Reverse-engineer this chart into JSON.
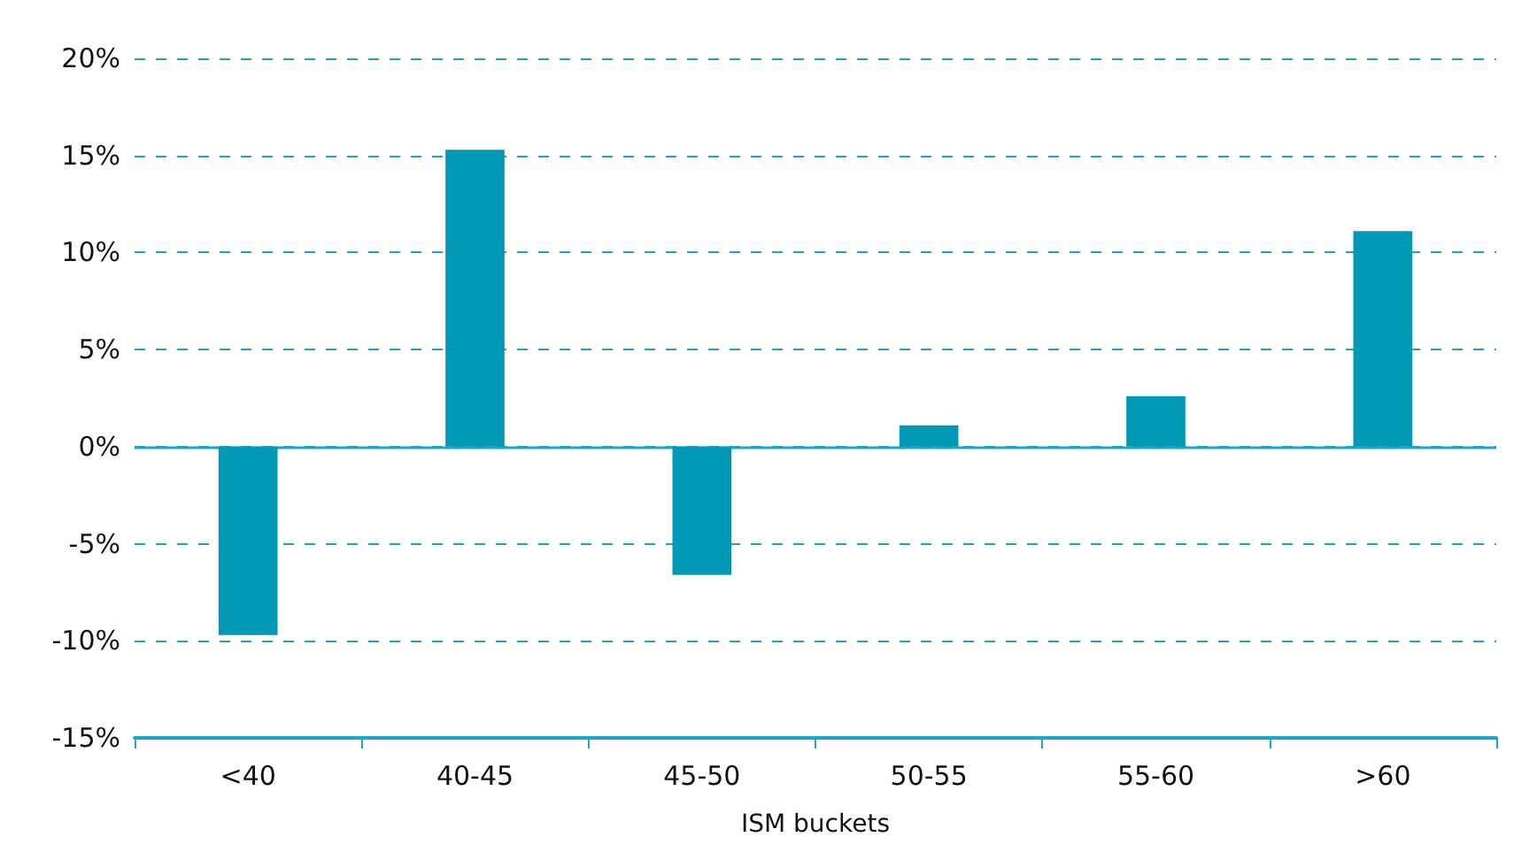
{
  "chart_data": {
    "type": "bar",
    "xlabel": "ISM buckets",
    "categories": [
      "<40",
      "40-45",
      "45-50",
      "50-55",
      "55-60",
      ">60"
    ],
    "values": [
      -9.7,
      15.3,
      -6.6,
      1.1,
      2.6,
      11.1
    ],
    "color": "#0099b5",
    "ylim": [
      -15,
      20
    ],
    "yticks": [
      {
        "value": -15,
        "label": "-15%"
      },
      {
        "value": -10,
        "label": "-10%"
      },
      {
        "value": -5,
        "label": "-5%"
      },
      {
        "value": 0,
        "label": "0%"
      },
      {
        "value": 5,
        "label": "5%"
      },
      {
        "value": 10,
        "label": "10%"
      },
      {
        "value": 15,
        "label": "15%"
      },
      {
        "value": 20,
        "label": "20%"
      }
    ],
    "grid": "y",
    "ref_lines": [
      {
        "axis": "y",
        "value": 0,
        "color": "#1aa6c8",
        "line_style": "solid"
      }
    ]
  }
}
